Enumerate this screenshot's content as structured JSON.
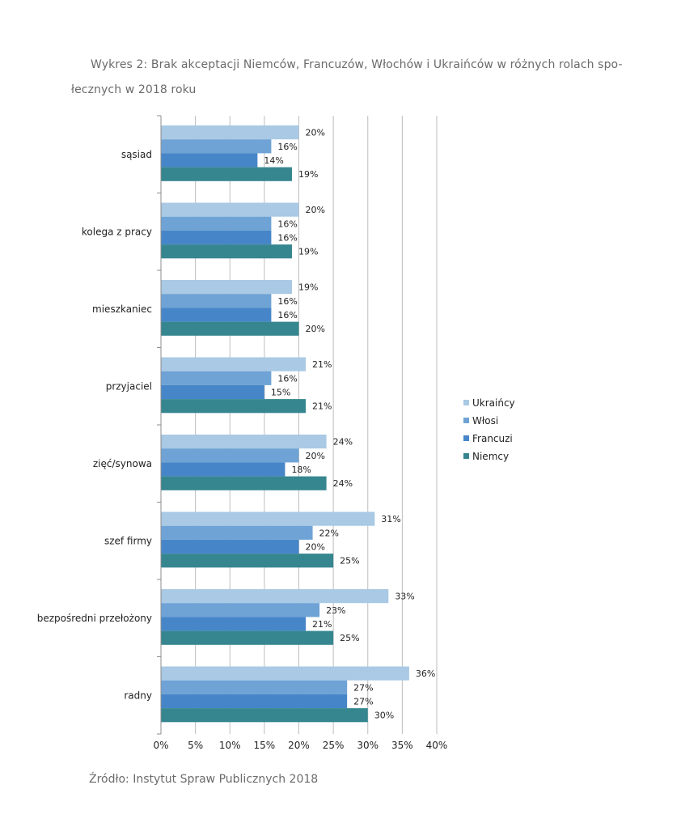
{
  "title_line1": "Wykres 2: Brak akceptacji Niemców, Francuzów, Włochów i Ukraińców w różnych rolach spo-",
  "title_line2": "łecznych w 2018 roku",
  "source": "Źródło: Instytut Spraw Publicznych 2018",
  "chart_data": {
    "type": "bar",
    "orientation": "horizontal",
    "title": "Wykres 2: Brak akceptacji Niemców, Francuzów, Włochów i Ukraińców w różnych rolach społecznych w 2018 roku",
    "categories": [
      "sąsiad",
      "kolega z pracy",
      "mieszkaniec",
      "przyjaciel",
      "zięć/synowa",
      "szef firmy",
      "bezpośredni przełożony",
      "radny"
    ],
    "series": [
      {
        "name": "Ukraińcy",
        "color": "#a9c9e4",
        "values": [
          20,
          20,
          19,
          21,
          24,
          31,
          33,
          36
        ]
      },
      {
        "name": "Włosi",
        "color": "#6fa3d6",
        "values": [
          16,
          16,
          16,
          16,
          20,
          22,
          23,
          27
        ]
      },
      {
        "name": "Francuzi",
        "color": "#4686c8",
        "values": [
          14,
          16,
          16,
          15,
          18,
          20,
          21,
          27
        ]
      },
      {
        "name": "Niemcy",
        "color": "#368690",
        "values": [
          19,
          19,
          20,
          21,
          24,
          25,
          25,
          30
        ]
      }
    ],
    "xlim": [
      0,
      40
    ],
    "xticks": [
      "0%",
      "5%",
      "10%",
      "15%",
      "20%",
      "25%",
      "30%",
      "35%",
      "40%"
    ],
    "value_suffix": "%",
    "grid": true,
    "legend_position": "right"
  }
}
